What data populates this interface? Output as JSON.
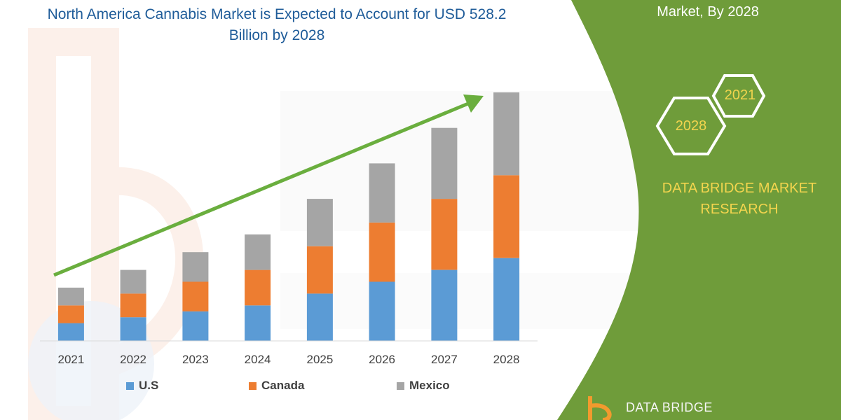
{
  "chart_data": {
    "type": "bar",
    "stacked": true,
    "title": "North America Cannabis Market is Expected to Account for USD 528.2 Billion by 2028",
    "categories": [
      "2021",
      "2022",
      "2023",
      "2024",
      "2025",
      "2026",
      "2027",
      "2028"
    ],
    "series": [
      {
        "name": "U.S",
        "color": "#5b9bd5",
        "values": [
          30,
          40,
          50,
          60,
          80,
          100,
          120,
          140
        ]
      },
      {
        "name": "Canada",
        "color": "#ed7d31",
        "values": [
          30,
          40,
          50,
          60,
          80,
          100,
          120,
          140
        ]
      },
      {
        "name": "Mexico",
        "color": "#a5a5a5",
        "values": [
          30,
          40,
          50,
          60,
          80,
          100,
          120,
          140
        ]
      }
    ],
    "ylim": [
      0,
      420
    ],
    "grid": false,
    "legend": "bottom",
    "annotation": "upward trend arrow"
  },
  "sidebar": {
    "top_text": "Market, By 2028",
    "hex_1": "2021",
    "hex_2": "2028",
    "brand": "DATA BRIDGE MARKET RESEARCH",
    "footer_logo": "DATA BRIDGE"
  },
  "colors": {
    "panel_green": "#6f9c3a",
    "brand_yellow": "#f3d54e",
    "arrow_green": "#6aae3e",
    "title_blue": "#1f5c99"
  }
}
